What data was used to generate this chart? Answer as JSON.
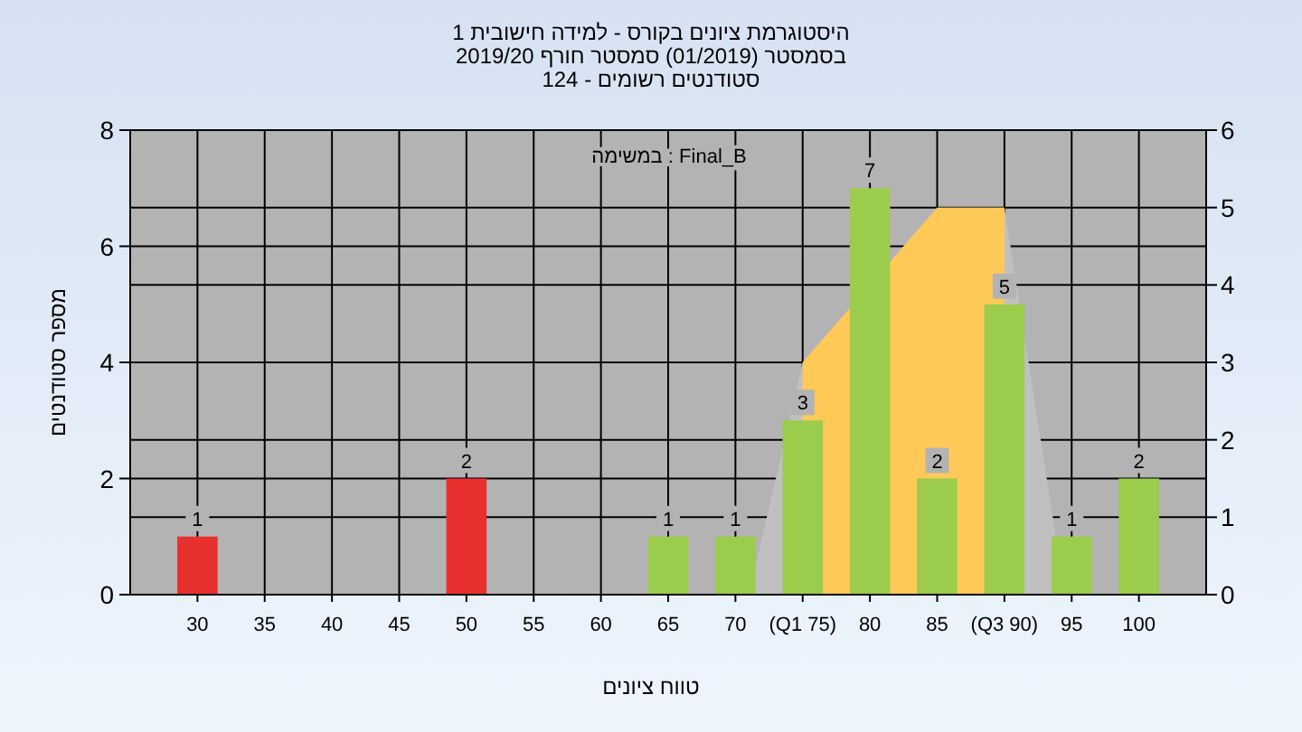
{
  "chart_data": {
    "type": "bar",
    "title": "היסטוגרמת ציונים בקורס - למידה חישובית 1",
    "subtitle": "בסמסטר  (01/2019)  סמסטר חורף 2019/20\nסטודנטים רשומים - 124",
    "xlabel": "טווח ציונים",
    "ylabel": "מספר סטודנטים",
    "annotations": [
      "במשימה : Final_B"
    ],
    "xlim": [
      25,
      105
    ],
    "xticks": [
      30,
      35,
      40,
      45,
      50,
      55,
      60,
      65,
      70,
      {
        "value": 75,
        "label": "(Q1 75)"
      },
      80,
      85,
      {
        "value": 90,
        "label": "(Q3 90)"
      },
      95,
      100
    ],
    "ylim": [
      0,
      8
    ],
    "yticks": [
      0,
      2,
      4,
      6,
      8
    ],
    "y2lim": [
      0,
      6
    ],
    "y2ticks": [
      0,
      1,
      2,
      3,
      4,
      5,
      6
    ],
    "grid": true,
    "series": [
      {
        "type": "area",
        "axis": "y2",
        "color": "#c0c0c0",
        "x": [
          71,
          75,
          85,
          90,
          94.5
        ],
        "values": [
          0,
          3,
          5,
          5,
          0
        ]
      },
      {
        "type": "area",
        "axis": "y2",
        "color": "#ffc957",
        "x": [
          75,
          85,
          90
        ],
        "values": [
          3,
          5,
          5
        ]
      },
      {
        "x": [
          30,
          50,
          65,
          70,
          75,
          80,
          85,
          90,
          95,
          100
        ],
        "values": [
          1,
          2,
          1,
          1,
          3,
          7,
          2,
          5,
          1,
          2
        ],
        "value_labels": [
          "1",
          "2",
          "1",
          "1",
          "3",
          "7",
          "2",
          "5",
          "1",
          "2"
        ],
        "colors": [
          "#e8312f",
          "#e8312f",
          "#9ccc4c",
          "#9ccc4c",
          "#9ccc4c",
          "#9ccc4c",
          "#9ccc4c",
          "#9ccc4c",
          "#9ccc4c",
          "#9ccc4c"
        ]
      }
    ]
  }
}
